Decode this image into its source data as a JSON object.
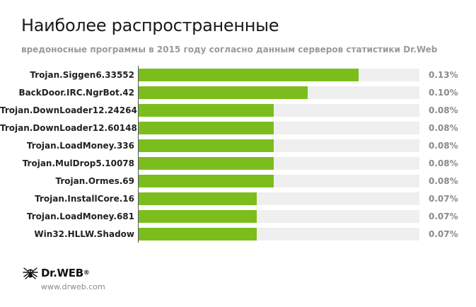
{
  "header": {
    "title": "Наиболее распространенные",
    "subtitle": "вредоносные программы в 2015 году согласно данным серверов статистики Dr.Web"
  },
  "colors": {
    "bar": "#7cbd1e",
    "track": "#efefef"
  },
  "chart_data": {
    "type": "bar",
    "orientation": "horizontal",
    "title": "Наиболее распространенные",
    "subtitle": "вредоносные программы в 2015 году согласно данным серверов статистики Dr.Web",
    "categories": [
      "Trojan.Siggen6.33552",
      "BackDoor.IRC.NgrBot.42",
      "Trojan.DownLoader12.24264",
      "Trojan.DownLoader12.60148",
      "Trojan.LoadMoney.336",
      "Trojan.MulDrop5.10078",
      "Trojan.Ormes.69",
      "Trojan.InstallCore.16",
      "Trojan.LoadMoney.681",
      "Win32.HLLW.Shadow"
    ],
    "values": [
      0.13,
      0.1,
      0.08,
      0.08,
      0.08,
      0.08,
      0.08,
      0.07,
      0.07,
      0.07
    ],
    "value_labels": [
      "0.13%",
      "0.10%",
      "0.08%",
      "0.08%",
      "0.08%",
      "0.08%",
      "0.08%",
      "0.07%",
      "0.07%",
      "0.07%"
    ],
    "xlim": [
      0,
      0.166
    ],
    "xlabel": "",
    "ylabel": "",
    "grid": false,
    "legend": "none"
  },
  "footer": {
    "logo_icon": "spider-icon",
    "logo_text": "Dr.WEB",
    "logo_reg": "®",
    "url": "www.drweb.com"
  }
}
